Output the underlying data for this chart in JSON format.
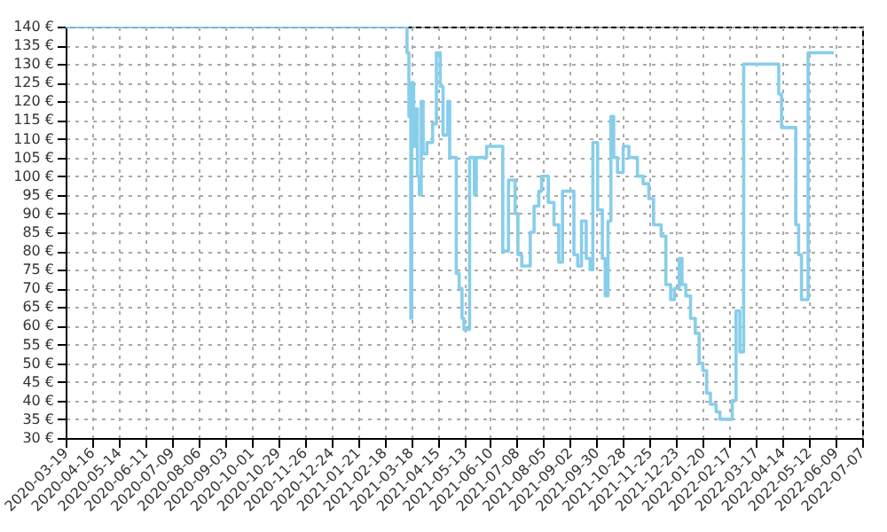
{
  "chart_data": {
    "type": "step",
    "x": [
      "2020-03-19",
      "2021-03-14",
      "2021-03-14",
      "2021-03-16",
      "2021-03-18",
      "2021-03-19",
      "2021-03-21",
      "2021-03-23",
      "2021-03-25",
      "2021-03-27",
      "2021-03-29",
      "2021-03-31",
      "2021-04-04",
      "2021-04-10",
      "2021-04-14",
      "2021-04-18",
      "2021-04-21",
      "2021-04-26",
      "2021-04-28",
      "2021-05-05",
      "2021-05-08",
      "2021-05-11",
      "2021-05-13",
      "2021-05-19",
      "2021-05-24",
      "2021-05-26",
      "2021-06-06",
      "2021-06-23",
      "2021-06-29",
      "2021-07-06",
      "2021-07-09",
      "2021-07-13",
      "2021-07-22",
      "2021-07-26",
      "2021-07-31",
      "2021-08-03",
      "2021-08-10",
      "2021-08-16",
      "2021-08-21",
      "2021-08-25",
      "2021-09-02",
      "2021-09-06",
      "2021-09-10",
      "2021-09-14",
      "2021-09-19",
      "2021-09-23",
      "2021-09-26",
      "2021-10-01",
      "2021-10-06",
      "2021-10-09",
      "2021-10-12",
      "2021-10-15",
      "2021-10-18",
      "2021-10-22",
      "2021-10-28",
      "2021-11-03",
      "2021-11-12",
      "2021-11-18",
      "2021-11-24",
      "2021-11-29",
      "2021-12-07",
      "2021-12-12",
      "2021-12-17",
      "2021-12-21",
      "2021-12-26",
      "2021-12-29",
      "2022-01-02",
      "2022-01-07",
      "2022-01-12",
      "2022-01-16",
      "2022-01-20",
      "2022-01-24",
      "2022-01-28",
      "2022-02-03",
      "2022-02-07",
      "2022-02-20",
      "2022-02-24",
      "2022-02-28",
      "2022-03-04",
      "2022-04-10",
      "2022-04-13",
      "2022-04-28",
      "2022-05-01",
      "2022-05-04",
      "2022-05-11",
      "2022-05-13",
      "2022-06-07"
    ],
    "series": [
      {
        "color": "#87ceeb",
        "values": [
          140,
          140,
          133,
          116,
          62,
          125,
          108,
          118,
          100,
          95,
          120,
          106,
          109,
          114,
          133,
          124,
          111,
          120,
          105,
          74,
          70,
          62,
          59,
          105,
          95,
          105,
          108,
          80,
          99,
          90,
          79,
          76,
          85,
          92,
          96,
          100,
          93,
          87,
          77,
          96,
          96,
          79,
          76,
          88,
          78,
          75,
          109,
          91,
          78,
          68,
          88,
          116,
          105,
          101,
          108,
          105,
          100,
          98,
          94,
          87,
          84,
          71,
          67,
          70,
          78,
          71,
          68,
          62,
          58,
          50,
          48,
          42,
          39,
          37,
          35,
          40,
          64,
          53,
          130,
          122,
          113,
          87,
          79,
          67,
          133,
          133,
          133
        ]
      }
    ],
    "xlim": [
      "2020-03-19",
      "2022-07-07"
    ],
    "xticks": [
      "2020-03-19",
      "2020-04-16",
      "2020-05-14",
      "2020-06-11",
      "2020-07-09",
      "2020-08-06",
      "2020-09-03",
      "2020-10-01",
      "2020-10-29",
      "2020-11-26",
      "2020-12-24",
      "2021-01-21",
      "2021-02-18",
      "2021-03-18",
      "2021-04-15",
      "2021-05-13",
      "2021-06-10",
      "2021-07-08",
      "2021-08-05",
      "2021-09-02",
      "2021-09-30",
      "2021-10-28",
      "2021-11-25",
      "2021-12-23",
      "2022-01-20",
      "2022-02-17",
      "2022-03-17",
      "2022-04-14",
      "2022-05-12",
      "2022-06-09",
      "2022-07-07"
    ],
    "ylim": [
      30,
      140
    ],
    "yticks": [
      {
        "value": 30,
        "label": "30 €"
      },
      {
        "value": 35,
        "label": "35 €"
      },
      {
        "value": 40,
        "label": "40 €"
      },
      {
        "value": 45,
        "label": "45 €"
      },
      {
        "value": 50,
        "label": "50 €"
      },
      {
        "value": 55,
        "label": "55 €"
      },
      {
        "value": 60,
        "label": "60 €"
      },
      {
        "value": 65,
        "label": "65 €"
      },
      {
        "value": 70,
        "label": "70 €"
      },
      {
        "value": 75,
        "label": "75 €"
      },
      {
        "value": 80,
        "label": "80 €"
      },
      {
        "value": 85,
        "label": "85 €"
      },
      {
        "value": 90,
        "label": "90 €"
      },
      {
        "value": 95,
        "label": "95 €"
      },
      {
        "value": 100,
        "label": "100 €"
      },
      {
        "value": 105,
        "label": "105 €"
      },
      {
        "value": 110,
        "label": "110 €"
      },
      {
        "value": 115,
        "label": "115 €"
      },
      {
        "value": 120,
        "label": "120 €"
      },
      {
        "value": 125,
        "label": "125 €"
      },
      {
        "value": 130,
        "label": "130 €"
      },
      {
        "value": 135,
        "label": "135 €"
      },
      {
        "value": 140,
        "label": "140 €"
      }
    ],
    "grid": true,
    "line_style": "solid"
  }
}
